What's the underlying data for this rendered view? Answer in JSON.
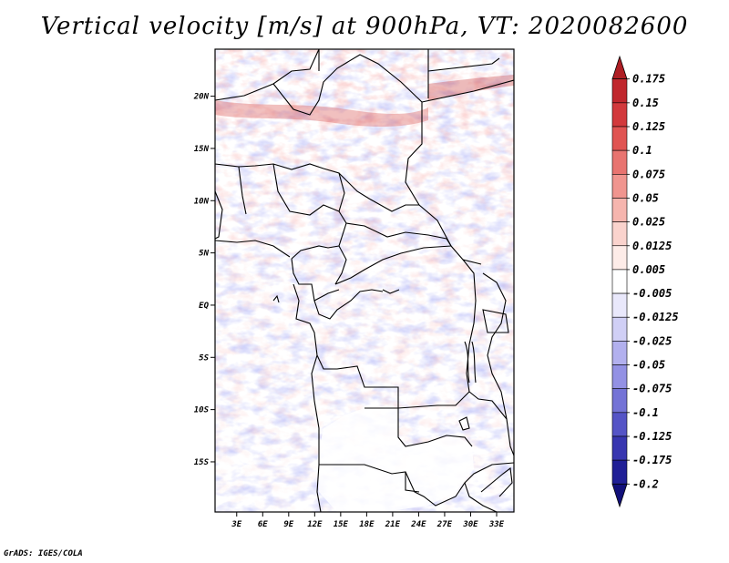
{
  "chart_data": {
    "type": "heatmap",
    "title": "Vertical velocity [m/s] at 900hPa, VT: 2020082600",
    "variable": "Vertical velocity",
    "units": "m/s",
    "level": "900hPa",
    "valid_time": "2020082600",
    "x_ticks": [
      3,
      6,
      9,
      12,
      15,
      18,
      21,
      24,
      27,
      30,
      33
    ],
    "x_tick_labels": [
      "3E",
      "6E",
      "9E",
      "12E",
      "15E",
      "18E",
      "21E",
      "24E",
      "27E",
      "30E",
      "33E"
    ],
    "y_ticks": [
      20,
      15,
      10,
      5,
      0,
      -5,
      -10,
      -15
    ],
    "y_tick_labels": [
      "20N",
      "15N",
      "10N",
      "5N",
      "EQ",
      "5S",
      "10S",
      "15S"
    ],
    "xlim": [
      0.5,
      35
    ],
    "ylim": [
      -19.8,
      24.5
    ],
    "colorbar_levels": [
      0.175,
      0.15,
      0.125,
      0.1,
      0.075,
      0.05,
      0.025,
      0.0125,
      0.005,
      -0.005,
      -0.0125,
      -0.025,
      -0.05,
      -0.075,
      -0.1,
      -0.125,
      -0.175,
      -0.2
    ],
    "colorbar_labels": [
      "0.175",
      "0.15",
      "0.125",
      "0.1",
      "0.075",
      "0.05",
      "0.025",
      "0.0125",
      "0.005",
      "-0.005",
      "-0.0125",
      "-0.025",
      "-0.05",
      "-0.075",
      "-0.1",
      "-0.125",
      "-0.175",
      "-0.2"
    ],
    "colorbar_colors": [
      "#ae1e24",
      "#c0272d",
      "#d2393c",
      "#e05452",
      "#e87470",
      "#f0958f",
      "#f6b5ae",
      "#fad3cd",
      "#fdece8",
      "#ffffff",
      "#e9e8fb",
      "#d0cff5",
      "#b2b0ee",
      "#9391e4",
      "#7473d6",
      "#5554c6",
      "#3836b0",
      "#201f96",
      "#12107a"
    ]
  },
  "credit": "GrADS: IGES/COLA"
}
